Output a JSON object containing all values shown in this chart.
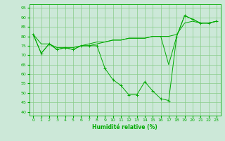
{
  "xlabel": "Humidité relative (%)",
  "bg_color": "#cce8d8",
  "line_color": "#00aa00",
  "grid_color": "#88cc88",
  "x_values": [
    0,
    1,
    2,
    3,
    4,
    5,
    6,
    7,
    8,
    9,
    10,
    11,
    12,
    13,
    14,
    15,
    16,
    17,
    18,
    19,
    20,
    21,
    22,
    23
  ],
  "series1": [
    81,
    71,
    76,
    73,
    74,
    73,
    75,
    75,
    75,
    63,
    57,
    54,
    49,
    49,
    56,
    51,
    47,
    46,
    80,
    91,
    89,
    87,
    87,
    88
  ],
  "series2": [
    81,
    76,
    76,
    74,
    74,
    74,
    75,
    76,
    77,
    77,
    78,
    78,
    79,
    79,
    79,
    80,
    80,
    80,
    81,
    87,
    88,
    87,
    87,
    88
  ],
  "series3": [
    81,
    71,
    76,
    73,
    74,
    73,
    75,
    75,
    76,
    77,
    78,
    78,
    79,
    79,
    79,
    80,
    80,
    65,
    80,
    91,
    89,
    87,
    87,
    88
  ],
  "xlim": [
    -0.5,
    23.5
  ],
  "ylim": [
    38,
    97
  ],
  "yticks": [
    40,
    45,
    50,
    55,
    60,
    65,
    70,
    75,
    80,
    85,
    90,
    95
  ],
  "xticks": [
    0,
    1,
    2,
    3,
    4,
    5,
    6,
    7,
    8,
    9,
    10,
    11,
    12,
    13,
    14,
    15,
    16,
    17,
    18,
    19,
    20,
    21,
    22,
    23
  ]
}
